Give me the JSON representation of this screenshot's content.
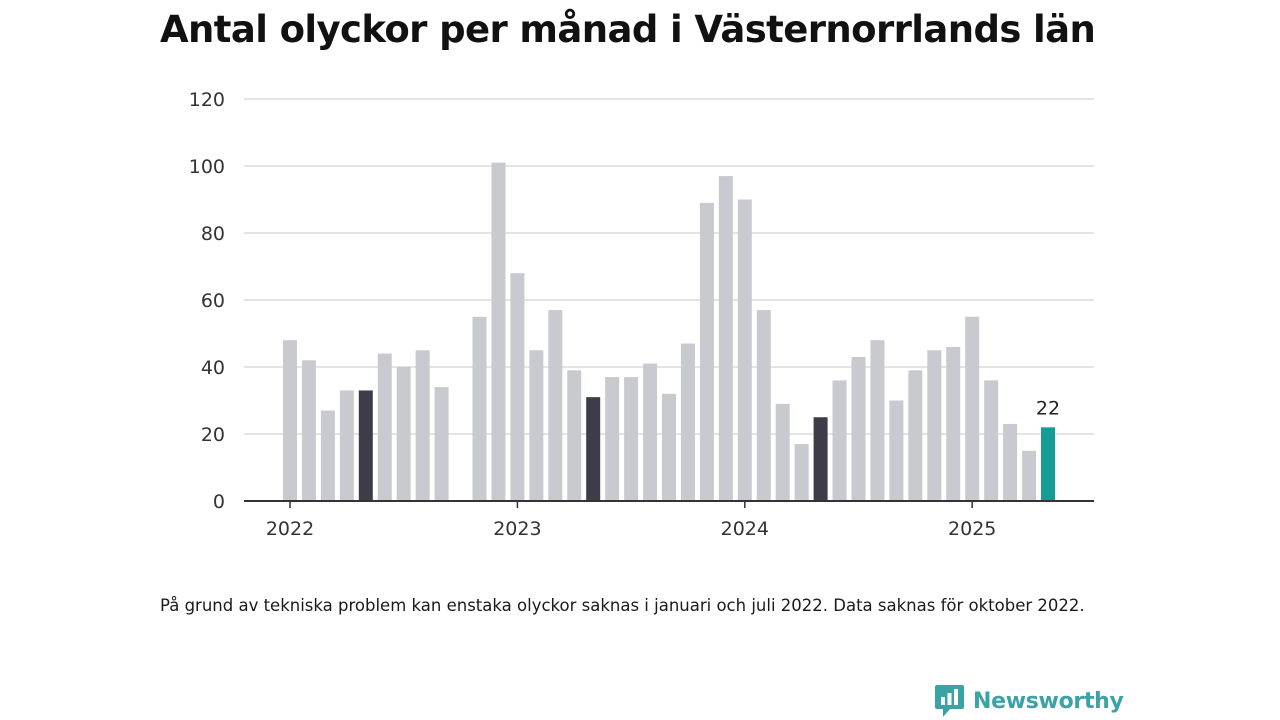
{
  "title": "Antal olyckor per månad i Västernorrlands län",
  "note": "På grund av tekniska problem kan enstaka olyckor saknas i januari och juli 2022. Data saknas för oktober 2022.",
  "brand": {
    "name": "Newsworthy",
    "icon": "newsworthy-logo-icon"
  },
  "colors": {
    "bar": "#c9c9d0",
    "highlight_month": "#3d3c48",
    "latest": "#169b95",
    "grid": "#dcdcdc",
    "axis": "#333333",
    "brand": "#3aa3a6"
  },
  "chart_data": {
    "type": "bar",
    "title": "Antal olyckor per månad i Västernorrlands län",
    "xlabel": "",
    "ylabel": "",
    "ylim": [
      0,
      120
    ],
    "yticks": [
      0,
      20,
      40,
      60,
      80,
      100,
      120
    ],
    "grid": true,
    "legend": "none",
    "x_ticks": [
      {
        "label": "2022",
        "category": "2022-01"
      },
      {
        "label": "2023",
        "category": "2023-01"
      },
      {
        "label": "2024",
        "category": "2024-01"
      },
      {
        "label": "2025",
        "category": "2025-01"
      }
    ],
    "categories": [
      "2022-01",
      "2022-02",
      "2022-03",
      "2022-04",
      "2022-05",
      "2022-06",
      "2022-07",
      "2022-08",
      "2022-09",
      "2022-10",
      "2022-11",
      "2022-12",
      "2023-01",
      "2023-02",
      "2023-03",
      "2023-04",
      "2023-05",
      "2023-06",
      "2023-07",
      "2023-08",
      "2023-09",
      "2023-10",
      "2023-11",
      "2023-12",
      "2024-01",
      "2024-02",
      "2024-03",
      "2024-04",
      "2024-05",
      "2024-06",
      "2024-07",
      "2024-08",
      "2024-09",
      "2024-10",
      "2024-11",
      "2024-12",
      "2025-01",
      "2025-02",
      "2025-03",
      "2025-04",
      "2025-05"
    ],
    "values": [
      48,
      42,
      27,
      33,
      33,
      44,
      40,
      45,
      34,
      null,
      55,
      101,
      68,
      45,
      57,
      39,
      31,
      37,
      37,
      41,
      32,
      47,
      89,
      97,
      90,
      57,
      29,
      17,
      25,
      36,
      43,
      48,
      30,
      39,
      45,
      46,
      55,
      36,
      23,
      15,
      22
    ],
    "highlighted": [
      "2022-05",
      "2023-05",
      "2024-05"
    ],
    "latest": "2025-05",
    "data_labels": [
      {
        "category": "2025-05",
        "text": "22"
      }
    ]
  }
}
